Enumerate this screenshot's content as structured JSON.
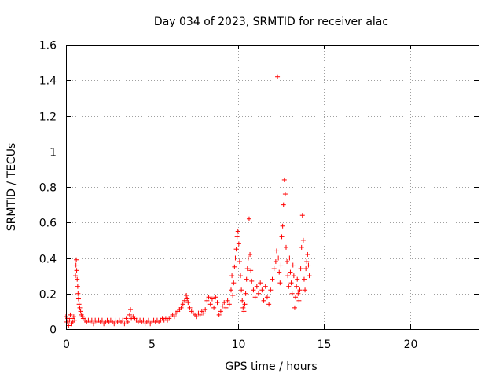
{
  "chart_data": {
    "type": "scatter",
    "title": "Day 034 of 2023, SRMTID for receiver alac",
    "xlabel": "GPS time / hours",
    "ylabel": "SRMTID / TECUs",
    "xlim": [
      0,
      24
    ],
    "ylim": [
      0,
      1.6
    ],
    "xticks": [
      0,
      5,
      10,
      15,
      20
    ],
    "xtick_labels": [
      "0",
      "5",
      "10",
      "15",
      "20"
    ],
    "yticks": [
      0,
      0.2,
      0.4,
      0.6,
      0.8,
      1,
      1.2,
      1.4,
      1.6
    ],
    "ytick_labels": [
      "0",
      "0.2",
      "0.4",
      "0.6",
      "0.8",
      "1",
      "1.2",
      "1.4",
      "1.6"
    ],
    "grid": true,
    "marker": "+",
    "color": "#ff0000",
    "series": [
      {
        "name": "SRMTID",
        "points": [
          [
            0.0,
            0.07
          ],
          [
            0.05,
            0.04
          ],
          [
            0.1,
            0.06
          ],
          [
            0.15,
            0.02
          ],
          [
            0.2,
            0.05
          ],
          [
            0.25,
            0.08
          ],
          [
            0.3,
            0.03
          ],
          [
            0.35,
            0.06
          ],
          [
            0.4,
            0.04
          ],
          [
            0.45,
            0.07
          ],
          [
            0.5,
            0.05
          ],
          [
            0.55,
            0.3
          ],
          [
            0.58,
            0.36
          ],
          [
            0.6,
            0.39
          ],
          [
            0.62,
            0.33
          ],
          [
            0.65,
            0.28
          ],
          [
            0.68,
            0.24
          ],
          [
            0.7,
            0.2
          ],
          [
            0.73,
            0.17
          ],
          [
            0.76,
            0.14
          ],
          [
            0.8,
            0.12
          ],
          [
            0.85,
            0.1
          ],
          [
            0.9,
            0.08
          ],
          [
            0.95,
            0.07
          ],
          [
            1.0,
            0.06
          ],
          [
            1.1,
            0.05
          ],
          [
            1.2,
            0.04
          ],
          [
            1.3,
            0.05
          ],
          [
            1.4,
            0.04
          ],
          [
            1.5,
            0.05
          ],
          [
            1.6,
            0.03
          ],
          [
            1.7,
            0.05
          ],
          [
            1.8,
            0.04
          ],
          [
            1.9,
            0.05
          ],
          [
            2.0,
            0.04
          ],
          [
            2.1,
            0.05
          ],
          [
            2.2,
            0.03
          ],
          [
            2.3,
            0.04
          ],
          [
            2.4,
            0.05
          ],
          [
            2.5,
            0.04
          ],
          [
            2.6,
            0.05
          ],
          [
            2.7,
            0.04
          ],
          [
            2.8,
            0.03
          ],
          [
            2.9,
            0.05
          ],
          [
            3.0,
            0.04
          ],
          [
            3.1,
            0.05
          ],
          [
            3.2,
            0.04
          ],
          [
            3.3,
            0.05
          ],
          [
            3.4,
            0.03
          ],
          [
            3.5,
            0.06
          ],
          [
            3.6,
            0.04
          ],
          [
            3.7,
            0.08
          ],
          [
            3.75,
            0.11
          ],
          [
            3.8,
            0.06
          ],
          [
            3.9,
            0.07
          ],
          [
            4.0,
            0.06
          ],
          [
            4.1,
            0.05
          ],
          [
            4.2,
            0.04
          ],
          [
            4.3,
            0.05
          ],
          [
            4.4,
            0.04
          ],
          [
            4.5,
            0.05
          ],
          [
            4.6,
            0.03
          ],
          [
            4.7,
            0.04
          ],
          [
            4.8,
            0.05
          ],
          [
            4.9,
            0.03
          ],
          [
            5.0,
            0.04
          ],
          [
            5.1,
            0.05
          ],
          [
            5.2,
            0.04
          ],
          [
            5.3,
            0.05
          ],
          [
            5.4,
            0.04
          ],
          [
            5.5,
            0.05
          ],
          [
            5.6,
            0.06
          ],
          [
            5.7,
            0.05
          ],
          [
            5.8,
            0.06
          ],
          [
            5.9,
            0.05
          ],
          [
            6.0,
            0.06
          ],
          [
            6.1,
            0.07
          ],
          [
            6.2,
            0.08
          ],
          [
            6.3,
            0.07
          ],
          [
            6.4,
            0.09
          ],
          [
            6.5,
            0.1
          ],
          [
            6.6,
            0.11
          ],
          [
            6.7,
            0.12
          ],
          [
            6.8,
            0.14
          ],
          [
            6.9,
            0.16
          ],
          [
            7.0,
            0.19
          ],
          [
            7.05,
            0.17
          ],
          [
            7.1,
            0.15
          ],
          [
            7.2,
            0.12
          ],
          [
            7.3,
            0.1
          ],
          [
            7.4,
            0.09
          ],
          [
            7.5,
            0.08
          ],
          [
            7.6,
            0.07
          ],
          [
            7.7,
            0.09
          ],
          [
            7.8,
            0.08
          ],
          [
            7.9,
            0.1
          ],
          [
            8.0,
            0.09
          ],
          [
            8.1,
            0.11
          ],
          [
            8.2,
            0.16
          ],
          [
            8.3,
            0.18
          ],
          [
            8.4,
            0.14
          ],
          [
            8.5,
            0.17
          ],
          [
            8.6,
            0.12
          ],
          [
            8.7,
            0.18
          ],
          [
            8.8,
            0.15
          ],
          [
            8.9,
            0.08
          ],
          [
            9.0,
            0.1
          ],
          [
            9.1,
            0.13
          ],
          [
            9.2,
            0.15
          ],
          [
            9.3,
            0.12
          ],
          [
            9.4,
            0.16
          ],
          [
            9.5,
            0.14
          ],
          [
            9.6,
            0.22
          ],
          [
            9.65,
            0.3
          ],
          [
            9.7,
            0.19
          ],
          [
            9.75,
            0.26
          ],
          [
            9.8,
            0.35
          ],
          [
            9.85,
            0.4
          ],
          [
            9.9,
            0.45
          ],
          [
            9.95,
            0.52
          ],
          [
            10.0,
            0.55
          ],
          [
            10.05,
            0.48
          ],
          [
            10.1,
            0.38
          ],
          [
            10.15,
            0.3
          ],
          [
            10.2,
            0.22
          ],
          [
            10.25,
            0.16
          ],
          [
            10.3,
            0.12
          ],
          [
            10.35,
            0.1
          ],
          [
            10.4,
            0.14
          ],
          [
            10.45,
            0.2
          ],
          [
            10.5,
            0.28
          ],
          [
            10.55,
            0.34
          ],
          [
            10.6,
            0.4
          ],
          [
            10.65,
            0.62
          ],
          [
            10.7,
            0.42
          ],
          [
            10.75,
            0.33
          ],
          [
            10.8,
            0.27
          ],
          [
            10.9,
            0.22
          ],
          [
            11.0,
            0.18
          ],
          [
            11.1,
            0.24
          ],
          [
            11.2,
            0.2
          ],
          [
            11.3,
            0.26
          ],
          [
            11.4,
            0.22
          ],
          [
            11.5,
            0.16
          ],
          [
            11.6,
            0.24
          ],
          [
            11.7,
            0.18
          ],
          [
            11.8,
            0.14
          ],
          [
            11.9,
            0.22
          ],
          [
            12.0,
            0.28
          ],
          [
            12.1,
            0.34
          ],
          [
            12.2,
            0.38
          ],
          [
            12.25,
            0.44
          ],
          [
            12.3,
            1.42
          ],
          [
            12.35,
            0.4
          ],
          [
            12.4,
            0.32
          ],
          [
            12.45,
            0.26
          ],
          [
            12.5,
            0.36
          ],
          [
            12.55,
            0.52
          ],
          [
            12.6,
            0.58
          ],
          [
            12.65,
            0.7
          ],
          [
            12.7,
            0.84
          ],
          [
            12.75,
            0.76
          ],
          [
            12.8,
            0.46
          ],
          [
            12.85,
            0.38
          ],
          [
            12.9,
            0.3
          ],
          [
            12.95,
            0.24
          ],
          [
            13.0,
            0.4
          ],
          [
            13.05,
            0.32
          ],
          [
            13.1,
            0.26
          ],
          [
            13.15,
            0.2
          ],
          [
            13.2,
            0.36
          ],
          [
            13.25,
            0.3
          ],
          [
            13.3,
            0.12
          ],
          [
            13.35,
            0.18
          ],
          [
            13.4,
            0.24
          ],
          [
            13.45,
            0.28
          ],
          [
            13.5,
            0.2
          ],
          [
            13.55,
            0.16
          ],
          [
            13.6,
            0.22
          ],
          [
            13.65,
            0.34
          ],
          [
            13.7,
            0.46
          ],
          [
            13.75,
            0.64
          ],
          [
            13.8,
            0.5
          ],
          [
            13.85,
            0.28
          ],
          [
            13.9,
            0.22
          ],
          [
            13.95,
            0.34
          ],
          [
            14.0,
            0.38
          ],
          [
            14.05,
            0.42
          ],
          [
            14.1,
            0.36
          ],
          [
            14.15,
            0.3
          ]
        ]
      }
    ]
  }
}
